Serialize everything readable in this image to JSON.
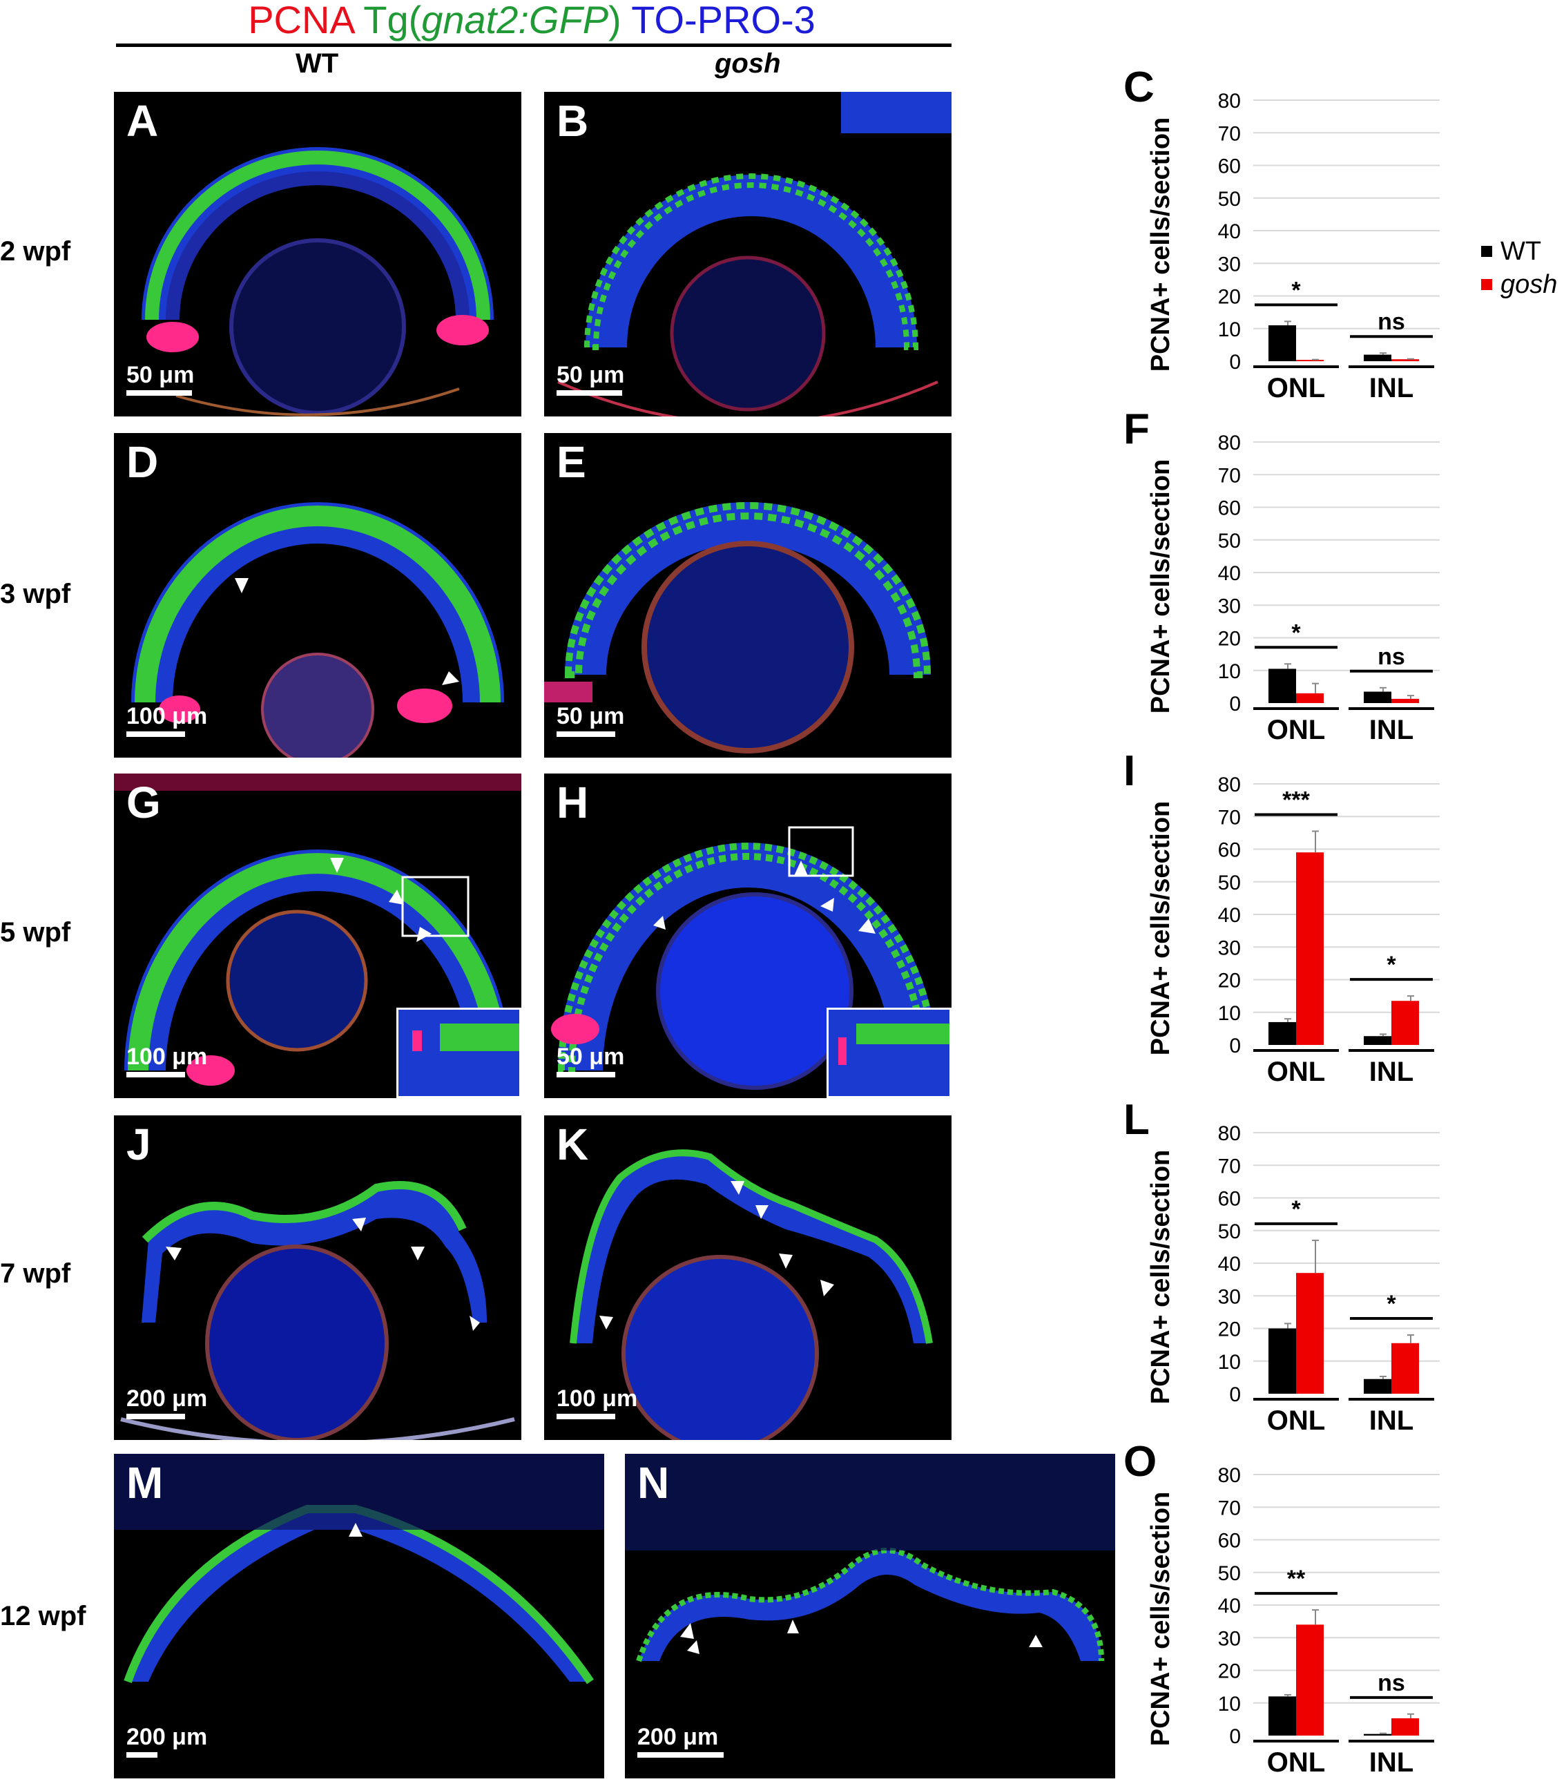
{
  "header": {
    "stain1": "PCNA",
    "stain2_prefix": "Tg(",
    "stain2_italic": "gnat2:GFP",
    "stain2_suffix": ")",
    "stain3": "TO-PRO-3",
    "col_wt": "WT",
    "col_gosh": "gosh",
    "colors": {
      "pcna": "#e8101c",
      "gfp": "#1f9a35",
      "topro": "#1c1cd8"
    }
  },
  "rows": [
    {
      "label": "2 wpf"
    },
    {
      "label": "3 wpf"
    },
    {
      "label": "5 wpf"
    },
    {
      "label": "7 wpf"
    },
    {
      "label": "12 wpf"
    }
  ],
  "panels": [
    {
      "letter": "A",
      "scale": "50 μm"
    },
    {
      "letter": "B",
      "scale": "50 μm"
    },
    {
      "letter": "D",
      "scale": "100 μm"
    },
    {
      "letter": "E",
      "scale": "50 μm"
    },
    {
      "letter": "G",
      "scale": "100 μm"
    },
    {
      "letter": "H",
      "scale": "50 μm"
    },
    {
      "letter": "J",
      "scale": "200 μm"
    },
    {
      "letter": "K",
      "scale": "100 μm"
    },
    {
      "letter": "M",
      "scale": "200 μm"
    },
    {
      "letter": "N",
      "scale": "200 μm"
    }
  ],
  "legend": {
    "items": [
      {
        "label": "WT",
        "color": "#000000"
      },
      {
        "label": "gosh",
        "color": "#ee0000"
      }
    ]
  },
  "chart_data": [
    {
      "type": "bar",
      "panel": "C",
      "ylabel": "PCNA+ cells/section",
      "ylim": [
        0,
        80
      ],
      "yticks": [
        0,
        10,
        20,
        30,
        40,
        50,
        60,
        70,
        80
      ],
      "categories": [
        "ONL",
        "INL"
      ],
      "series": [
        {
          "name": "WT",
          "values": [
            11,
            2
          ],
          "errors": [
            1.2,
            0.5
          ]
        },
        {
          "name": "gosh",
          "values": [
            0.4,
            0.6
          ],
          "errors": [
            0.1,
            0.1
          ]
        }
      ],
      "significance": [
        "*",
        "ns"
      ]
    },
    {
      "type": "bar",
      "panel": "F",
      "ylabel": "PCNA+ cells/section",
      "ylim": [
        0,
        80
      ],
      "yticks": [
        0,
        10,
        20,
        30,
        40,
        50,
        60,
        70,
        80
      ],
      "categories": [
        "ONL",
        "INL"
      ],
      "series": [
        {
          "name": "WT",
          "values": [
            10.5,
            3.5
          ],
          "errors": [
            1.5,
            1.2
          ]
        },
        {
          "name": "gosh",
          "values": [
            3,
            1.3
          ],
          "errors": [
            3,
            1
          ]
        }
      ],
      "significance": [
        "*",
        "ns"
      ]
    },
    {
      "type": "bar",
      "panel": "I",
      "ylabel": "PCNA+ cells/section",
      "ylim": [
        0,
        80
      ],
      "yticks": [
        0,
        10,
        20,
        30,
        40,
        50,
        60,
        70,
        80
      ],
      "categories": [
        "ONL",
        "INL"
      ],
      "series": [
        {
          "name": "WT",
          "values": [
            7,
            2.7
          ],
          "errors": [
            1,
            0.6
          ]
        },
        {
          "name": "gosh",
          "values": [
            59,
            13.5
          ],
          "errors": [
            6.5,
            1.5
          ]
        }
      ],
      "significance": [
        "***",
        "*"
      ]
    },
    {
      "type": "bar",
      "panel": "L",
      "ylabel": "PCNA+ cells/section",
      "ylim": [
        0,
        80
      ],
      "yticks": [
        0,
        10,
        20,
        30,
        40,
        50,
        60,
        70,
        80
      ],
      "categories": [
        "ONL",
        "INL"
      ],
      "series": [
        {
          "name": "WT",
          "values": [
            20,
            4.5
          ],
          "errors": [
            1.5,
            0.8
          ]
        },
        {
          "name": "gosh",
          "values": [
            37,
            15.5
          ],
          "errors": [
            10,
            2.5
          ]
        }
      ],
      "significance": [
        "*",
        "*"
      ]
    },
    {
      "type": "bar",
      "panel": "O",
      "ylabel": "PCNA+ cells/section",
      "ylim": [
        0,
        80
      ],
      "yticks": [
        0,
        10,
        20,
        30,
        40,
        50,
        60,
        70,
        80
      ],
      "categories": [
        "ONL",
        "INL"
      ],
      "series": [
        {
          "name": "WT",
          "values": [
            12,
            0.5
          ],
          "errors": [
            0.5,
            0.2
          ]
        },
        {
          "name": "gosh",
          "values": [
            34,
            5.3
          ],
          "errors": [
            4.5,
            1.3
          ]
        }
      ],
      "significance": [
        "**",
        "ns"
      ]
    }
  ]
}
